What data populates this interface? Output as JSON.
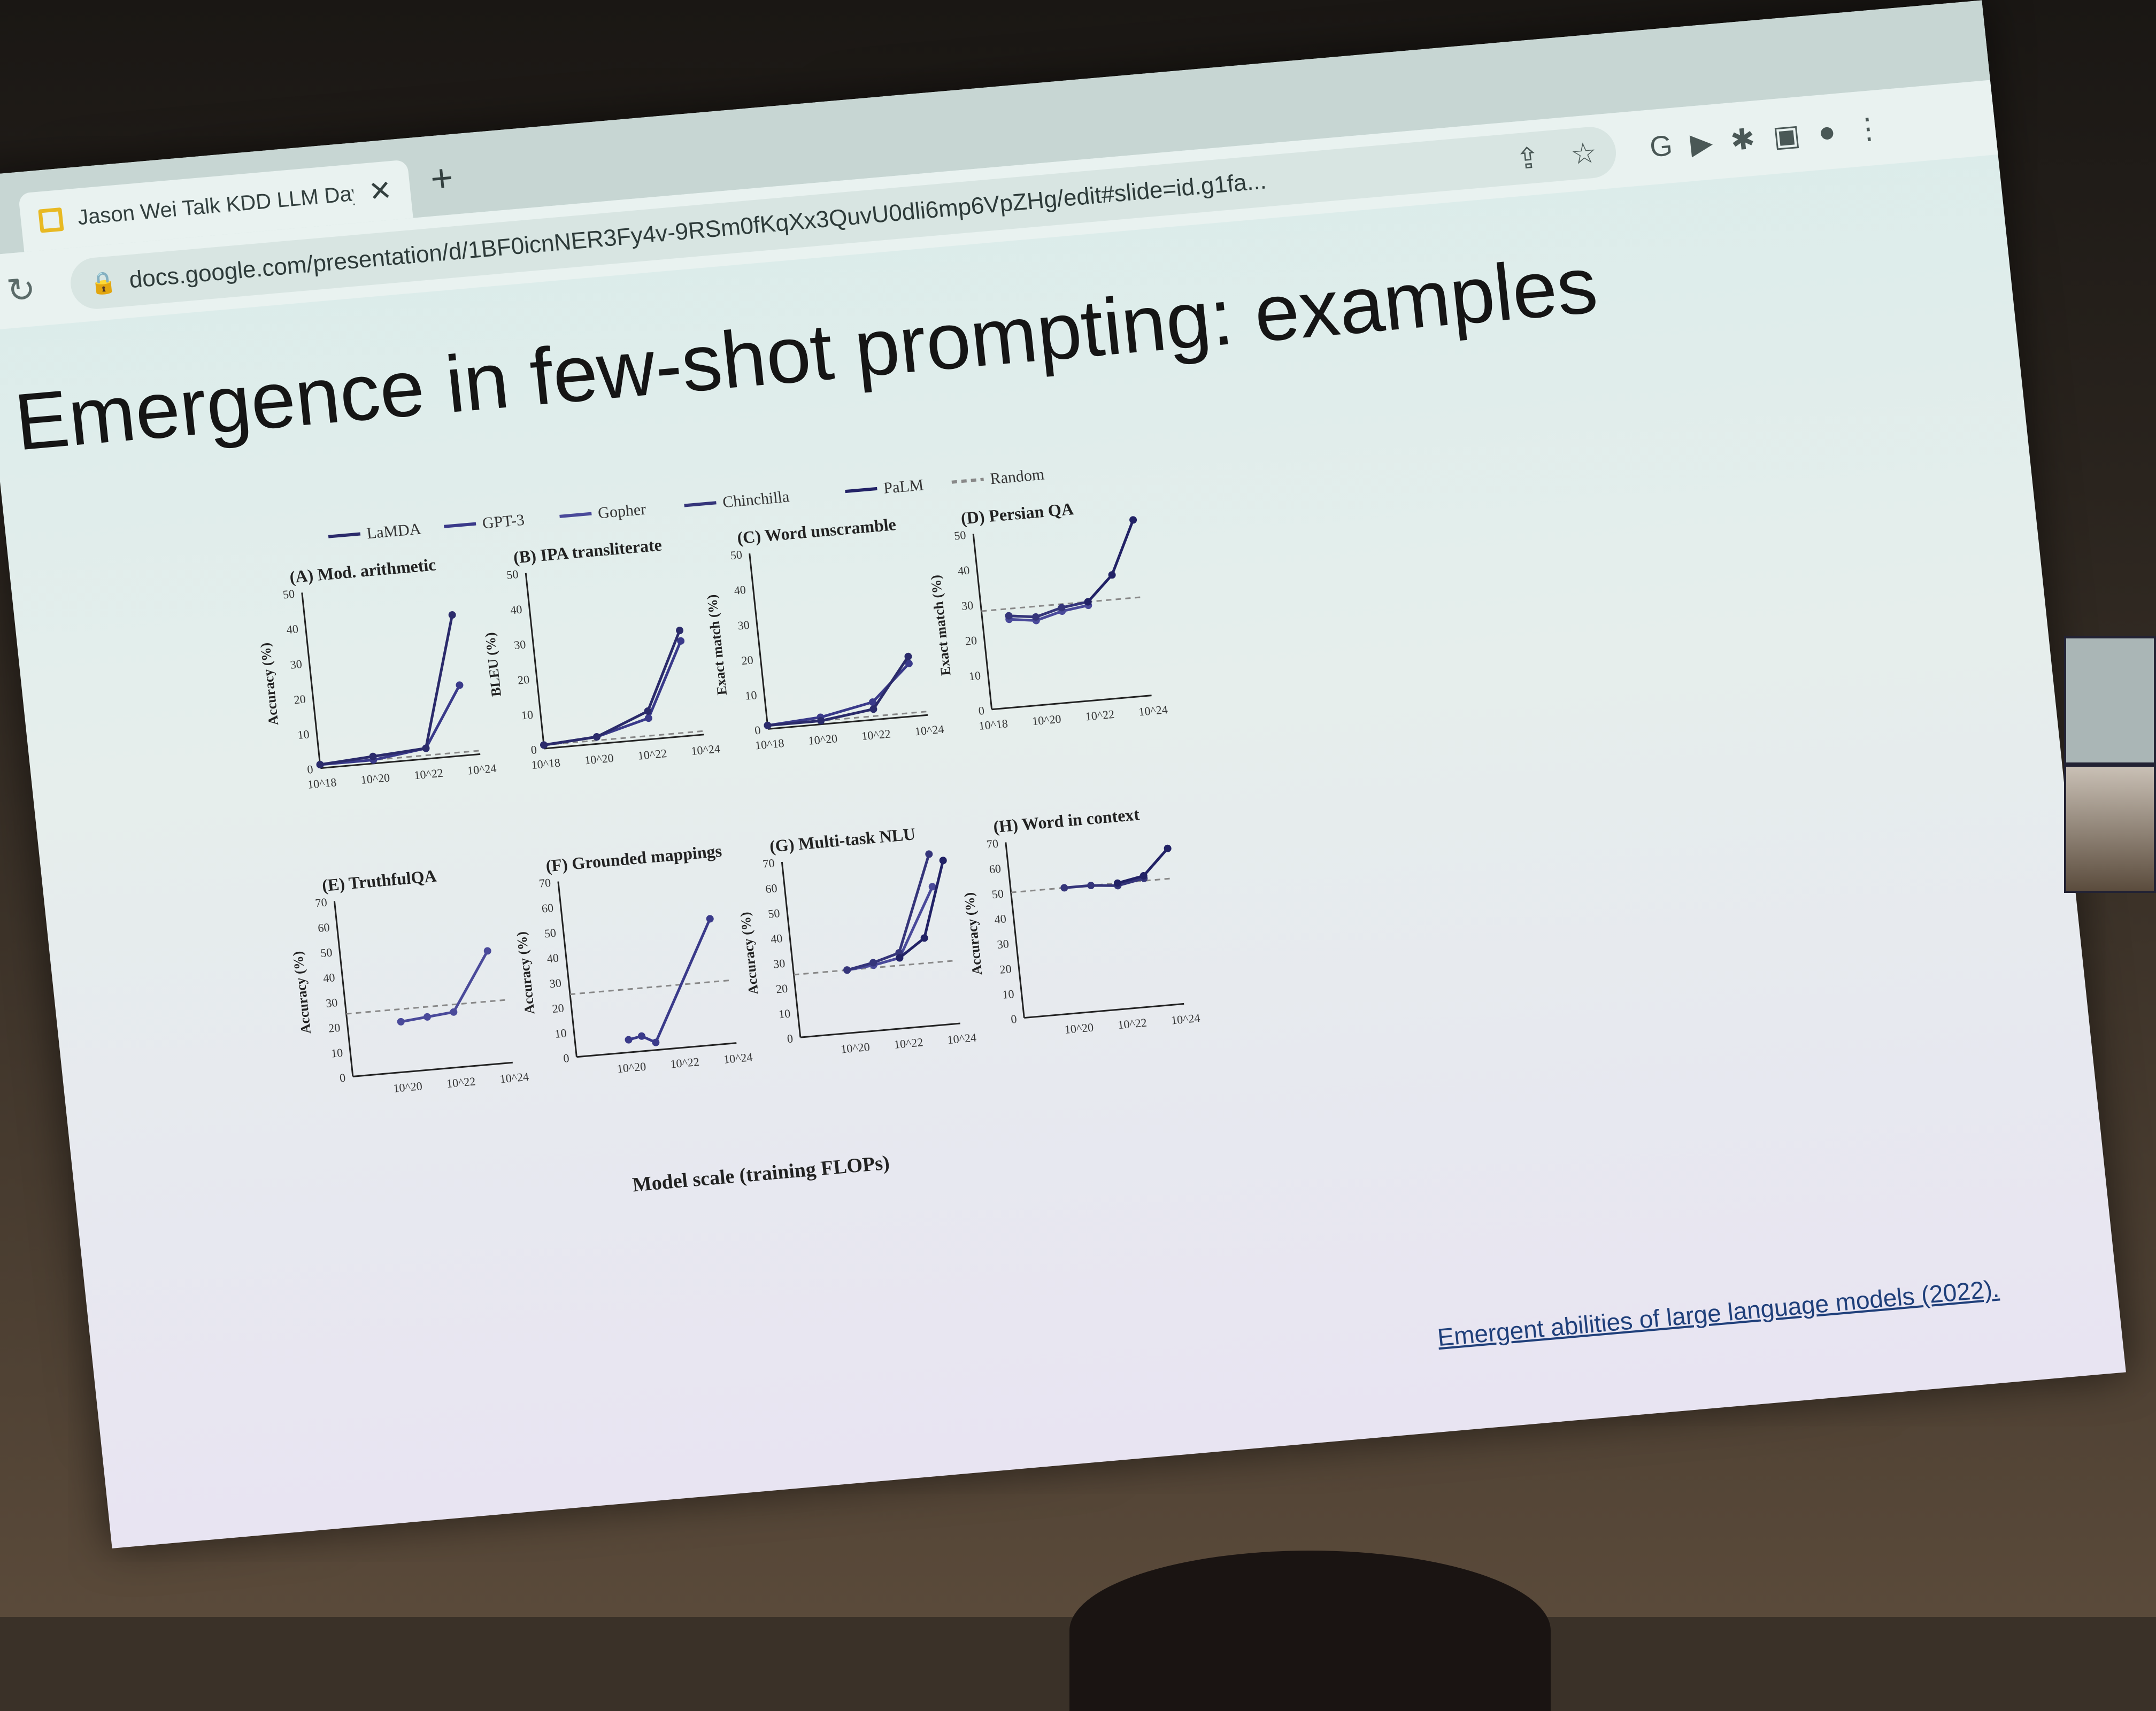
{
  "browser": {
    "tab": {
      "title": "Jason Wei Talk KDD LLM Day",
      "close": "✕"
    },
    "new_tab": "+",
    "reload": "↻",
    "url": "docs.google.com/presentation/d/1BF0icnNER3Fy4v-9RSm0fKqXx3QuvU0dli6mp6VpZHg/edit#slide=id.g1fa..."
  },
  "slide": {
    "title": "Emergence in few-shot prompting: examples",
    "legend": [
      "LaMDA",
      "GPT-3",
      "Gopher",
      "Chinchilla",
      "PaLM",
      "Random"
    ],
    "xaxis_label": "Model scale (training FLOPs)",
    "citation": "Emergent abilities of large language models (2022)."
  },
  "chart_data": [
    {
      "type": "line",
      "title": "(A) Mod. arithmetic",
      "ylabel": "Accuracy (%)",
      "ylim": [
        0,
        50
      ],
      "x_ticks": [
        "10^18",
        "10^20",
        "10^22",
        "10^24"
      ],
      "series": [
        {
          "name": "GPT-3",
          "x": [
            18,
            20,
            22,
            23.5
          ],
          "y": [
            1,
            1,
            3,
            20
          ]
        },
        {
          "name": "LaMDA",
          "x": [
            18,
            20,
            22,
            23.5
          ],
          "y": [
            1,
            2,
            3,
            40
          ]
        }
      ]
    },
    {
      "type": "line",
      "title": "(B) IPA transliterate",
      "ylabel": "BLEU (%)",
      "ylim": [
        0,
        50
      ],
      "x_ticks": [
        "10^18",
        "10^20",
        "10^22",
        "10^24"
      ],
      "series": [
        {
          "name": "GPT-3",
          "x": [
            18,
            20,
            22,
            23.5
          ],
          "y": [
            1,
            2,
            6,
            27
          ]
        },
        {
          "name": "LaMDA",
          "x": [
            18,
            20,
            22,
            23.5
          ],
          "y": [
            1,
            2,
            8,
            30
          ]
        }
      ]
    },
    {
      "type": "line",
      "title": "(C) Word unscramble",
      "ylabel": "Exact match (%)",
      "ylim": [
        0,
        50
      ],
      "x_ticks": [
        "10^18",
        "10^20",
        "10^22",
        "10^24"
      ],
      "series": [
        {
          "name": "GPT-3",
          "x": [
            18,
            20,
            22,
            23.5
          ],
          "y": [
            1,
            2,
            5,
            15
          ]
        },
        {
          "name": "LaMDA",
          "x": [
            18,
            20,
            22,
            23.5
          ],
          "y": [
            1,
            1,
            3,
            17
          ]
        }
      ]
    },
    {
      "type": "line",
      "title": "(D) Persian QA",
      "ylabel": "Exact match (%)",
      "ylim": [
        0,
        50
      ],
      "x_ticks": [
        "10^18",
        "10^20",
        "10^22",
        "10^24"
      ],
      "series": [
        {
          "name": "Gopher",
          "x": [
            19,
            20,
            21,
            22
          ],
          "y": [
            25,
            24,
            26,
            27
          ]
        },
        {
          "name": "Chinchilla",
          "x": [
            19,
            20,
            21,
            22
          ],
          "y": [
            26,
            25,
            27,
            28
          ]
        },
        {
          "name": "PaLM",
          "x": [
            22,
            23,
            24
          ],
          "y": [
            28,
            35,
            50
          ]
        }
      ]
    },
    {
      "type": "line",
      "title": "(E) TruthfulQA",
      "ylabel": "Accuracy (%)",
      "ylim": [
        0,
        70
      ],
      "x_ticks": [
        "10^20",
        "10^22",
        "10^24"
      ],
      "series": [
        {
          "name": "Gopher",
          "x": [
            20,
            21,
            22,
            23.5
          ],
          "y": [
            20,
            21,
            22,
            45
          ]
        }
      ]
    },
    {
      "type": "line",
      "title": "(F) Grounded mappings",
      "ylabel": "Accuracy (%)",
      "ylim": [
        0,
        70
      ],
      "x_ticks": [
        "10^20",
        "10^22",
        "10^24"
      ],
      "series": [
        {
          "name": "GPT-3",
          "x": [
            20,
            20.5,
            21,
            23.5
          ],
          "y": [
            5,
            6,
            3,
            50
          ]
        }
      ]
    },
    {
      "type": "line",
      "title": "(G) Multi-task NLU",
      "ylabel": "Accuracy (%)",
      "ylim": [
        0,
        70
      ],
      "x_ticks": [
        "10^20",
        "10^22",
        "10^24"
      ],
      "series": [
        {
          "name": "Gopher",
          "x": [
            20,
            21,
            22,
            23.5
          ],
          "y": [
            25,
            26,
            28,
            55
          ]
        },
        {
          "name": "Chinchilla",
          "x": [
            20,
            21,
            22,
            23.5
          ],
          "y": [
            25,
            27,
            30,
            68
          ]
        },
        {
          "name": "PaLM",
          "x": [
            22,
            23,
            24
          ],
          "y": [
            28,
            35,
            65
          ]
        }
      ]
    },
    {
      "type": "line",
      "title": "(H) Word in context",
      "ylabel": "Accuracy (%)",
      "ylim": [
        0,
        70
      ],
      "x_ticks": [
        "10^20",
        "10^22",
        "10^24"
      ],
      "series": [
        {
          "name": "Chinchilla",
          "x": [
            20,
            21,
            22,
            23
          ],
          "y": [
            50,
            50,
            49,
            51
          ]
        },
        {
          "name": "PaLM",
          "x": [
            22,
            23,
            24
          ],
          "y": [
            50,
            52,
            62
          ]
        }
      ]
    }
  ]
}
